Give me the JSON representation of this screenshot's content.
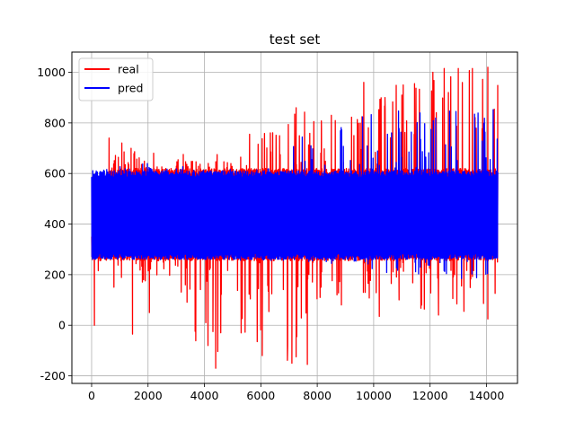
{
  "chart_data": {
    "type": "line",
    "title": "test set",
    "xlabel": "",
    "ylabel": "",
    "xlim": [
      -700,
      15100
    ],
    "ylim": [
      -230,
      1080
    ],
    "grid": true,
    "legend_position": "top-left",
    "x_ticks": [
      0,
      2000,
      4000,
      6000,
      8000,
      10000,
      12000,
      14000
    ],
    "x_tick_labels": [
      "0",
      "2000",
      "4000",
      "6000",
      "8000",
      "10000",
      "12000",
      "14000"
    ],
    "y_ticks": [
      -200,
      0,
      200,
      400,
      600,
      800,
      1000
    ],
    "y_tick_labels": [
      "-200",
      "0",
      "200",
      "400",
      "600",
      "800",
      "1000"
    ],
    "x_range": [
      0,
      14400
    ],
    "series": [
      {
        "name": "real",
        "color": "#ff0000",
        "typical_low": 270,
        "typical_high": 610,
        "envelope_x": [
          0,
          1000,
          2000,
          3000,
          4000,
          5000,
          6000,
          7000,
          8000,
          9000,
          9500,
          10000,
          11000,
          12000,
          12500,
          13000,
          13500,
          14000,
          14400
        ],
        "envelope_max": [
          350,
          740,
          640,
          680,
          670,
          640,
          755,
          860,
          830,
          900,
          960,
          940,
          960,
          1000,
          1015,
          1015,
          1015,
          1020,
          950
        ],
        "envelope_min": [
          140,
          130,
          150,
          170,
          -170,
          -60,
          -80,
          -150,
          50,
          80,
          120,
          90,
          60,
          40,
          50,
          60,
          60,
          30,
          150
        ],
        "spikes_up": [
          [
            620,
            740
          ],
          [
            2200,
            680
          ],
          [
            4450,
            675
          ],
          [
            5600,
            755
          ],
          [
            7250,
            860
          ],
          [
            7450,
            640
          ],
          [
            8150,
            780
          ],
          [
            8500,
            830
          ],
          [
            9650,
            960
          ],
          [
            10400,
            900
          ],
          [
            11000,
            910
          ],
          [
            11450,
            955
          ],
          [
            12100,
            1000
          ],
          [
            12500,
            1015
          ],
          [
            13000,
            1015
          ],
          [
            13500,
            1015
          ],
          [
            14050,
            1020
          ],
          [
            14400,
            950
          ]
        ],
        "spikes_down": [
          [
            100,
            0
          ],
          [
            1450,
            -35
          ],
          [
            2050,
            50
          ],
          [
            4050,
            10
          ],
          [
            4300,
            -25
          ],
          [
            4400,
            -170
          ],
          [
            5300,
            -30
          ],
          [
            6050,
            -120
          ],
          [
            6950,
            -80
          ],
          [
            7100,
            -150
          ],
          [
            7250,
            -125
          ],
          [
            7650,
            -155
          ],
          [
            8100,
            110
          ],
          [
            8700,
            120
          ],
          [
            9700,
            130
          ],
          [
            10200,
            35
          ],
          [
            10900,
            100
          ],
          [
            11700,
            80
          ],
          [
            12300,
            40
          ],
          [
            13200,
            55
          ],
          [
            14050,
            25
          ]
        ]
      },
      {
        "name": "pred",
        "color": "#0000ff",
        "typical_low": 275,
        "typical_high": 600,
        "envelope_x": [
          0,
          2000,
          4000,
          7000,
          7300,
          8000,
          9500,
          10000,
          12000,
          14000,
          14400
        ],
        "envelope_max": [
          620,
          640,
          620,
          620,
          820,
          680,
          860,
          860,
          865,
          865,
          860
        ],
        "envelope_min": [
          260,
          260,
          255,
          255,
          255,
          250,
          230,
          200,
          190,
          180,
          220
        ]
      }
    ]
  }
}
